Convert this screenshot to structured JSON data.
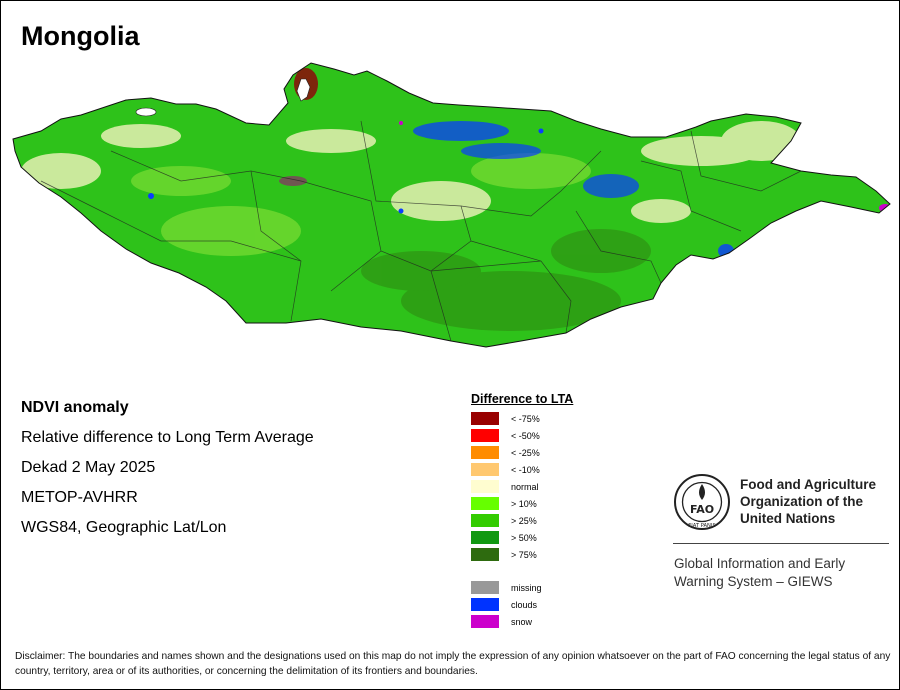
{
  "title": "Mongolia",
  "info": {
    "name": "NDVI anomaly",
    "description": "Relative difference to Long Term Average",
    "period": "Dekad 2 May 2025",
    "sensor": "METOP-AVHRR",
    "projection": "WGS84, Geographic Lat/Lon"
  },
  "legend": {
    "title": "Difference to LTA",
    "classes": [
      {
        "label": "< -75%",
        "color": "#990000"
      },
      {
        "label": "< -50%",
        "color": "#ff0000"
      },
      {
        "label": "< -25%",
        "color": "#ff8c00"
      },
      {
        "label": "< -10%",
        "color": "#ffc870"
      },
      {
        "label": "normal",
        "color": "#fffdd0"
      },
      {
        "label": "> 10%",
        "color": "#66ff00"
      },
      {
        "label": "> 25%",
        "color": "#33cc00"
      },
      {
        "label": "> 50%",
        "color": "#119911"
      },
      {
        "label": "> 75%",
        "color": "#2e6b0f"
      }
    ],
    "special": [
      {
        "label": "missing",
        "color": "#999999"
      },
      {
        "label": "clouds",
        "color": "#0033ff"
      },
      {
        "label": "snow",
        "color": "#cc00cc"
      }
    ]
  },
  "logo": {
    "organization": [
      "Food and Agriculture",
      "Organization of the",
      "United Nations"
    ],
    "emblem_text": "FAO",
    "emblem_motto": "FIAT PANIS",
    "program": [
      "Global Information and Early",
      "Warning System – GIEWS"
    ]
  },
  "disclaimer": "Disclaimer: The boundaries and names shown and the designations used on this map do not imply the expression of any opinion whatsoever on the part of FAO concerning the legal status of any country, territory, area or of its authorities, or concerning the delimitation of its frontiers and boundaries."
}
